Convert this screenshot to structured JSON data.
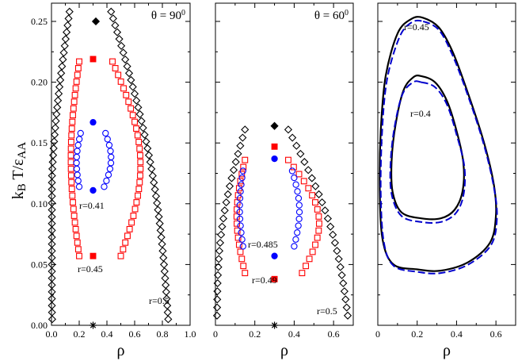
{
  "chart_data": [
    {
      "type": "scatter",
      "panel": "left",
      "title": "θ = 90⁰",
      "xlabel": "ρ",
      "ylabel": "kBT/εAA",
      "xlim": [
        0.0,
        1.0
      ],
      "ylim": [
        0.0,
        0.265
      ],
      "xticks": [
        "0.0",
        "0.2",
        "0.4",
        "0.6",
        "0.8",
        "1.0"
      ],
      "yticks": [
        "0.00",
        "0.05",
        "0.10",
        "0.15",
        "0.20",
        "0.25"
      ],
      "annotations": [
        "r=0.41",
        "r=0.45",
        "r=0.5"
      ],
      "series": [
        {
          "name": "r=0.5",
          "marker": "diamond",
          "color": "#000000",
          "filled": false,
          "T_low": 0.005,
          "T_high": 0.258,
          "liquid_low": 0.842,
          "liquid_high": 0.43,
          "gas_low": 0.005,
          "gas_high": 0.13,
          "count": 46,
          "critical": {
            "x": 0.32,
            "y": 0.25
          }
        },
        {
          "name": "r=0.45",
          "marker": "square",
          "color": "#ff0000",
          "filled": false,
          "T_low": 0.057,
          "T_high": 0.217,
          "liquid_low": 0.5,
          "liquid_high": 0.44,
          "gas_low": 0.2,
          "gas_high": 0.2,
          "count": 30,
          "critical": {
            "x": 0.3,
            "y": 0.219
          }
        },
        {
          "name": "r=0.41",
          "marker": "circle",
          "color": "#0000ff",
          "filled": false,
          "T_low": 0.114,
          "T_high": 0.158,
          "liquid_low": 0.38,
          "liquid_high": 0.39,
          "gas_low": 0.2,
          "gas_high": 0.21,
          "count": 10,
          "critical": {
            "x": 0.3,
            "y": 0.167
          }
        }
      ],
      "extra_points": [
        {
          "name": "r=0.45 lower end",
          "marker": "square",
          "color": "#ff0000",
          "x": 0.3,
          "y": 0.057
        },
        {
          "name": "r=0.41 lower end",
          "marker": "circle",
          "color": "#0000ff",
          "x": 0.3,
          "y": 0.111
        },
        {
          "name": "r=0.5 lower end",
          "marker": "star",
          "color": "#000000",
          "x": 0.3,
          "y": 0.0
        }
      ]
    },
    {
      "type": "scatter",
      "panel": "middle",
      "title": "θ = 60⁰",
      "xlabel": "ρ",
      "xlim": [
        0.0,
        0.7
      ],
      "ylim": [
        0.0,
        0.265
      ],
      "xticks": [
        "0",
        "0.2",
        "0.4",
        "0.6"
      ],
      "annotations": [
        "r=0.485",
        "r=0.49",
        "r=0.5"
      ],
      "series": [
        {
          "name": "r=0.5",
          "marker": "diamond",
          "color": "#000000",
          "filled": false,
          "T_low": 0.008,
          "T_high": 0.161,
          "liquid_low": 0.672,
          "liquid_high": 0.37,
          "gas_low": 0.008,
          "gas_high": 0.15,
          "count": 24,
          "critical": {
            "x": 0.3,
            "y": 0.164
          }
        },
        {
          "name": "r=0.49",
          "marker": "square",
          "color": "#ff0000",
          "filled": false,
          "T_low": 0.043,
          "T_high": 0.136,
          "liquid_low": 0.44,
          "liquid_high": 0.37,
          "gas_low": 0.15,
          "gas_high": 0.15,
          "count": 17,
          "critical": {
            "x": 0.3,
            "y": 0.147
          }
        },
        {
          "name": "r=0.485",
          "marker": "circle",
          "color": "#0000ff",
          "filled": false,
          "T_low": 0.065,
          "T_high": 0.127,
          "liquid_low": 0.4,
          "liquid_high": 0.39,
          "gas_low": 0.14,
          "gas_high": 0.14,
          "count": 12,
          "critical": {
            "x": 0.3,
            "y": 0.137
          }
        }
      ],
      "extra_points": [
        {
          "name": "r=0.485 lower end",
          "marker": "circle",
          "color": "#0000ff",
          "x": 0.3,
          "y": 0.057
        },
        {
          "name": "r=0.49 lower end",
          "marker": "square",
          "color": "#ff0000",
          "x": 0.3,
          "y": 0.038
        },
        {
          "name": "r=0.5 lower end",
          "marker": "star",
          "color": "#000000",
          "x": 0.3,
          "y": 0.0
        }
      ]
    },
    {
      "type": "line",
      "panel": "right",
      "xlabel": "ρ",
      "xlim": [
        0.0,
        0.7
      ],
      "ylim": [
        0.0,
        0.265
      ],
      "xticks": [
        "0",
        "0.2",
        "0.4",
        "0.6"
      ],
      "annotations": [
        "r=0.45",
        "r=0.4"
      ],
      "series": [
        {
          "name": "r=0.45 solid",
          "color": "#000000",
          "dash": "solid",
          "points": [
            [
              0.23,
              0.253
            ],
            [
              0.31,
              0.245
            ],
            [
              0.38,
              0.225
            ],
            [
              0.46,
              0.19
            ],
            [
              0.54,
              0.15
            ],
            [
              0.59,
              0.115
            ],
            [
              0.6,
              0.09
            ],
            [
              0.57,
              0.068
            ],
            [
              0.46,
              0.052
            ],
            [
              0.32,
              0.045
            ],
            [
              0.2,
              0.046
            ],
            [
              0.08,
              0.05
            ],
            [
              0.025,
              0.07
            ],
            [
              0.01,
              0.11
            ],
            [
              0.015,
              0.16
            ],
            [
              0.04,
              0.205
            ],
            [
              0.1,
              0.24
            ],
            [
              0.17,
              0.252
            ]
          ]
        },
        {
          "name": "r=0.45 dashed",
          "color": "#0000cc",
          "dash": "dashed",
          "points": [
            [
              0.23,
              0.25
            ],
            [
              0.31,
              0.243
            ],
            [
              0.38,
              0.222
            ],
            [
              0.46,
              0.188
            ],
            [
              0.54,
              0.148
            ],
            [
              0.59,
              0.113
            ],
            [
              0.605,
              0.088
            ],
            [
              0.575,
              0.066
            ],
            [
              0.46,
              0.05
            ],
            [
              0.32,
              0.043
            ],
            [
              0.2,
              0.044
            ],
            [
              0.08,
              0.049
            ],
            [
              0.03,
              0.069
            ],
            [
              0.015,
              0.11
            ],
            [
              0.022,
              0.16
            ],
            [
              0.048,
              0.203
            ],
            [
              0.11,
              0.237
            ],
            [
              0.17,
              0.249
            ]
          ]
        },
        {
          "name": "r=0.4 solid",
          "color": "#000000",
          "dash": "solid",
          "points": [
            [
              0.22,
              0.205
            ],
            [
              0.29,
              0.2
            ],
            [
              0.35,
              0.185
            ],
            [
              0.4,
              0.16
            ],
            [
              0.435,
              0.133
            ],
            [
              0.43,
              0.11
            ],
            [
              0.39,
              0.095
            ],
            [
              0.32,
              0.088
            ],
            [
              0.22,
              0.088
            ],
            [
              0.12,
              0.093
            ],
            [
              0.075,
              0.11
            ],
            [
              0.07,
              0.135
            ],
            [
              0.09,
              0.165
            ],
            [
              0.13,
              0.193
            ],
            [
              0.18,
              0.204
            ]
          ]
        },
        {
          "name": "r=0.4 dashed",
          "color": "#0000cc",
          "dash": "dashed",
          "points": [
            [
              0.22,
              0.2
            ],
            [
              0.29,
              0.196
            ],
            [
              0.35,
              0.182
            ],
            [
              0.4,
              0.157
            ],
            [
              0.44,
              0.13
            ],
            [
              0.435,
              0.107
            ],
            [
              0.395,
              0.092
            ],
            [
              0.32,
              0.085
            ],
            [
              0.22,
              0.085
            ],
            [
              0.12,
              0.09
            ],
            [
              0.07,
              0.108
            ],
            [
              0.065,
              0.134
            ],
            [
              0.085,
              0.163
            ],
            [
              0.125,
              0.19
            ],
            [
              0.18,
              0.2
            ]
          ]
        }
      ]
    }
  ],
  "labels": {
    "ylabel": "kBT/εAA",
    "xlabel": "ρ"
  }
}
